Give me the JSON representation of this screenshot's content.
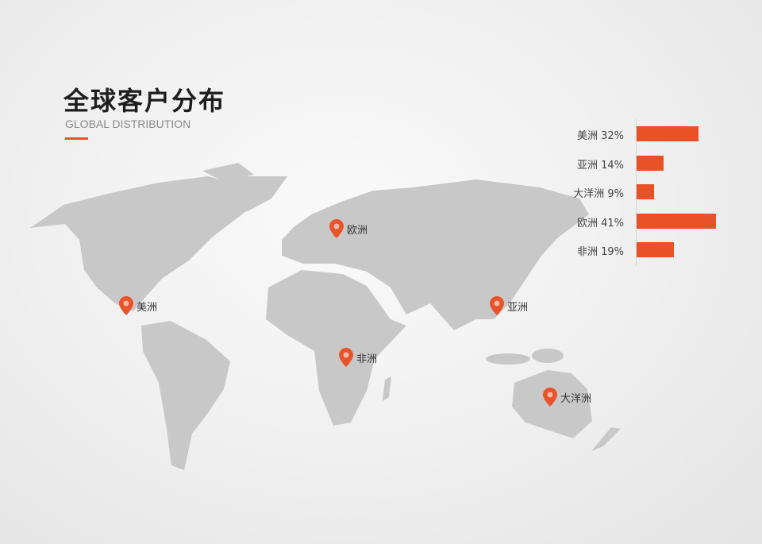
{
  "header": {
    "title": "全球客户分布",
    "subtitle": "GLOBAL DISTRIBUTION"
  },
  "colors": {
    "accent": "#e8532a",
    "land": "#c8c8c8"
  },
  "pins": [
    {
      "label": "欧洲",
      "icon": "map-pin-icon"
    },
    {
      "label": "美洲",
      "icon": "map-pin-icon"
    },
    {
      "label": "亚洲",
      "icon": "map-pin-icon"
    },
    {
      "label": "非洲",
      "icon": "map-pin-icon"
    },
    {
      "label": "大洋洲",
      "icon": "map-pin-icon"
    }
  ],
  "chart_data": {
    "type": "bar",
    "orientation": "horizontal",
    "categories": [
      "美洲",
      "亚洲",
      "大洋洲",
      "欧洲",
      "非洲"
    ],
    "values": [
      32,
      14,
      9,
      41,
      19
    ],
    "labels": [
      "美洲 32%",
      "亚洲 14%",
      "大洋洲 9%",
      "欧洲 41%",
      "非洲 19%"
    ],
    "unit": "%"
  }
}
